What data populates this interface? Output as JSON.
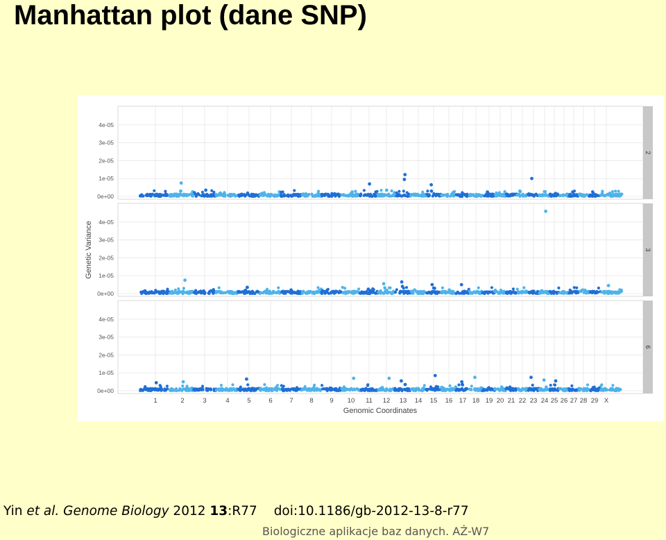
{
  "slide": {
    "title": "Manhattan plot (dane SNP)",
    "citation": {
      "authors": "Yin",
      "etal": "et al.",
      "journal": "Genome Biology",
      "year": "2012",
      "volume": "13",
      "article": ":R77",
      "doi": "doi:10.1186/gb-2012-13-8-r77"
    },
    "footer": "Biologiczne aplikacje baz danych. AŻ-W7"
  },
  "chart_data": {
    "type": "scatter",
    "xlabel": "Genomic Coordinates",
    "ylabel": "Genetic Variance",
    "ylim": [
      0,
      4.5e-05
    ],
    "y_ticks": [
      "0e+00",
      "1e-05",
      "2e-05",
      "3e-05",
      "4e-05"
    ],
    "y_tick_values": [
      0,
      1e-05,
      2e-05,
      3e-05,
      4e-05
    ],
    "x_ticks": [
      "1",
      "2",
      "3",
      "4",
      "5",
      "6",
      "7",
      "8",
      "9",
      "10",
      "11",
      "12",
      "13",
      "14",
      "15",
      "16",
      "17",
      "18",
      "19",
      "20",
      "21",
      "22",
      "23",
      "24",
      "25",
      "26",
      "27",
      "28",
      "29",
      "X"
    ],
    "grid": true,
    "colors": {
      "dark": "#1f6fd6",
      "light": "#4fb3ea",
      "strip": "#c8c8c8",
      "grid": "#e6e6e6"
    },
    "facets": [
      {
        "label": "2",
        "points": [
          {
            "chr": "2",
            "y": 7.5e-06
          },
          {
            "chr": "2",
            "y": 3e-06
          },
          {
            "chr": "3",
            "y": 3.5e-06
          },
          {
            "chr": "10",
            "y": 2.5e-06
          },
          {
            "chr": "11",
            "y": 7e-06
          },
          {
            "chr": "12",
            "y": 3.5e-06
          },
          {
            "chr": "13",
            "y": 1.22e-05
          },
          {
            "chr": "13",
            "y": 9.5e-06
          },
          {
            "chr": "15",
            "y": 6.5e-06
          },
          {
            "chr": "15",
            "y": 3e-06
          },
          {
            "chr": "22",
            "y": 3e-06
          },
          {
            "chr": "23",
            "y": 1e-05
          },
          {
            "chr": "27",
            "y": 2.5e-06
          },
          {
            "chr": "19",
            "y": 2.5e-06
          }
        ]
      },
      {
        "label": "3",
        "points": [
          {
            "chr": "24",
            "y": 4.6e-05
          },
          {
            "chr": "2",
            "y": 7.5e-06
          },
          {
            "chr": "5",
            "y": 3.5e-06
          },
          {
            "chr": "12",
            "y": 5.5e-06
          },
          {
            "chr": "13",
            "y": 6.5e-06
          },
          {
            "chr": "13",
            "y": 4e-06
          },
          {
            "chr": "15",
            "y": 5e-06
          },
          {
            "chr": "17",
            "y": 5e-06
          },
          {
            "chr": "X",
            "y": 4.5e-06
          },
          {
            "chr": "7",
            "y": 2e-06
          },
          {
            "chr": "11",
            "y": 2.5e-06
          },
          {
            "chr": "15",
            "y": 3e-06
          },
          {
            "chr": "16",
            "y": 2e-06
          }
        ]
      },
      {
        "label": "6",
        "points": [
          {
            "chr": "1",
            "y": 4.5e-06
          },
          {
            "chr": "2",
            "y": 5e-06
          },
          {
            "chr": "5",
            "y": 6.5e-06
          },
          {
            "chr": "10",
            "y": 7e-06
          },
          {
            "chr": "12",
            "y": 7e-06
          },
          {
            "chr": "13",
            "y": 5.5e-06
          },
          {
            "chr": "15",
            "y": 8.5e-06
          },
          {
            "chr": "17",
            "y": 5e-06
          },
          {
            "chr": "18",
            "y": 7.5e-06
          },
          {
            "chr": "23",
            "y": 7.5e-06
          },
          {
            "chr": "24",
            "y": 6e-06
          },
          {
            "chr": "25",
            "y": 5.5e-06
          },
          {
            "chr": "17",
            "y": 3.5e-06
          },
          {
            "chr": "13",
            "y": 3.5e-06
          },
          {
            "chr": "20",
            "y": 2e-06
          }
        ]
      }
    ]
  }
}
